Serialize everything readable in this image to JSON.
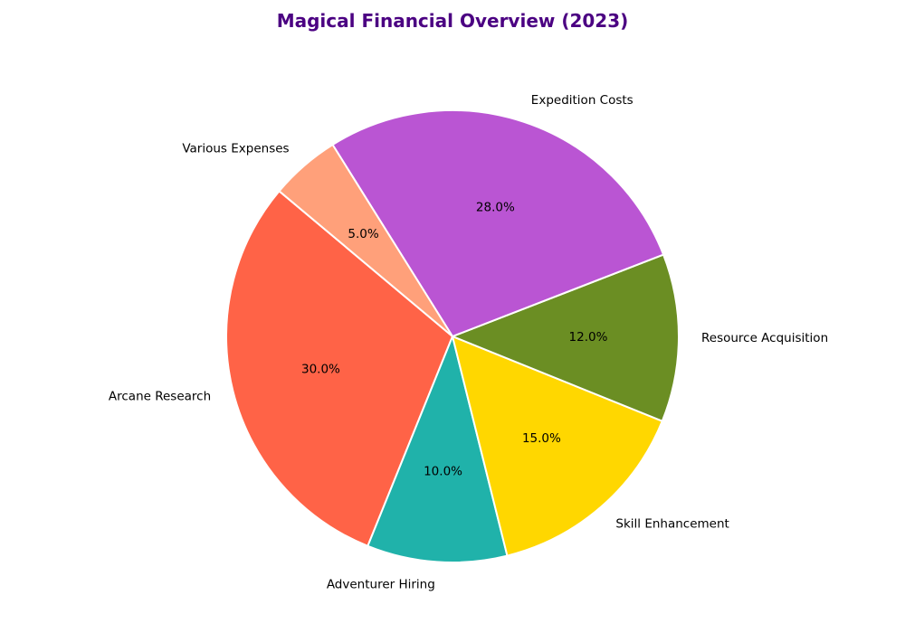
{
  "chart_data": {
    "type": "pie",
    "title": "Magical Financial Overview (2023)",
    "slices": [
      {
        "label": "Arcane Research",
        "value": 30.0,
        "pct_label": "30.0%",
        "color": "#FF6347"
      },
      {
        "label": "Adventurer Hiring",
        "value": 10.0,
        "pct_label": "10.0%",
        "color": "#20B2AA"
      },
      {
        "label": "Skill Enhancement",
        "value": 15.0,
        "pct_label": "15.0%",
        "color": "#FFD700"
      },
      {
        "label": "Resource Acquisition",
        "value": 12.0,
        "pct_label": "12.0%",
        "color": "#6B8E23"
      },
      {
        "label": "Expedition Costs",
        "value": 28.0,
        "pct_label": "28.0%",
        "color": "#BA55D3"
      },
      {
        "label": "Various Expenses",
        "value": 5.0,
        "pct_label": "5.0%",
        "color": "#FFA07A"
      }
    ],
    "title_color": "#4B0082",
    "edge_color": "#ffffff",
    "start_angle_deg": 140,
    "direction": "counterclockwise"
  }
}
